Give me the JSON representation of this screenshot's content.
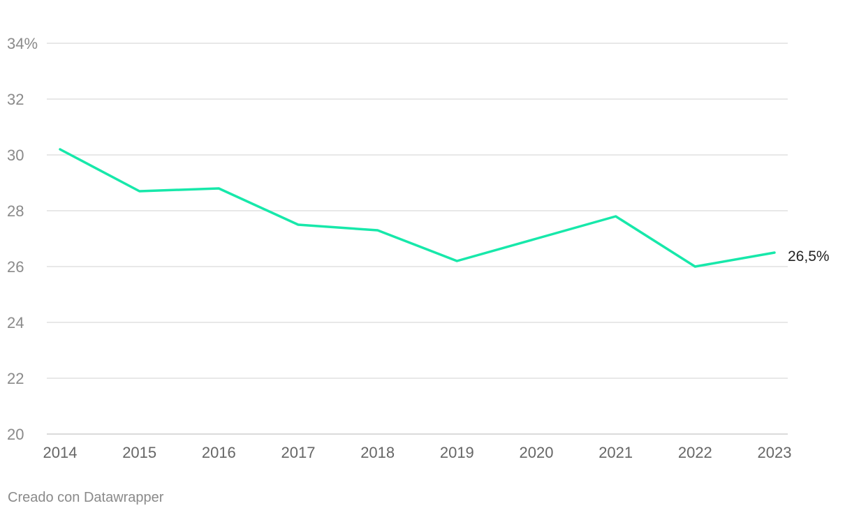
{
  "footer": {
    "credit": "Creado con Datawrapper"
  },
  "chart_data": {
    "type": "line",
    "x": [
      "2014",
      "2015",
      "2016",
      "2017",
      "2018",
      "2019",
      "2020",
      "2021",
      "2022",
      "2023"
    ],
    "series": [
      {
        "values": [
          30.2,
          28.7,
          28.8,
          27.5,
          27.3,
          26.2,
          27.0,
          27.8,
          26.0,
          26.5
        ],
        "color": "#17e8aa"
      }
    ],
    "ylim": [
      20,
      34
    ],
    "y_ticks": [
      20,
      22,
      24,
      26,
      28,
      30,
      32,
      34
    ],
    "y_tick_labels": [
      "20",
      "22",
      "24",
      "26",
      "28",
      "30",
      "32",
      "34%"
    ],
    "end_label": "26,5%",
    "grid": true,
    "legend": "none"
  }
}
